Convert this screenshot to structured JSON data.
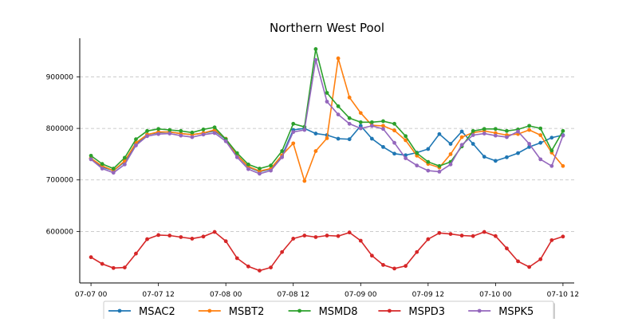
{
  "chart_data": {
    "type": "line",
    "title": "Northern West Pool",
    "xlabel": "",
    "ylabel": "",
    "x": [
      "07-07 00",
      "07-07 02",
      "07-07 04",
      "07-07 06",
      "07-07 08",
      "07-07 10",
      "07-07 12",
      "07-07 14",
      "07-07 16",
      "07-07 18",
      "07-07 20",
      "07-07 22",
      "07-08 00",
      "07-08 02",
      "07-08 04",
      "07-08 06",
      "07-08 08",
      "07-08 10",
      "07-08 12",
      "07-08 14",
      "07-08 16",
      "07-08 18",
      "07-08 20",
      "07-08 22",
      "07-09 00",
      "07-09 02",
      "07-09 04",
      "07-09 06",
      "07-09 08",
      "07-09 10",
      "07-09 12",
      "07-09 14",
      "07-09 16",
      "07-09 18",
      "07-09 20",
      "07-09 22",
      "07-10 00",
      "07-10 02",
      "07-10 04",
      "07-10 06",
      "07-10 08",
      "07-10 10",
      "07-10 12"
    ],
    "xlim": [
      "07-06 22",
      "07-10 14"
    ],
    "x_ticks": [
      "07-07 00",
      "07-07 12",
      "07-08 00",
      "07-08 12",
      "07-09 00",
      "07-09 12",
      "07-10 00",
      "07-10 12"
    ],
    "y_ticks": [
      600000,
      700000,
      800000,
      900000
    ],
    "ylim": [
      500000,
      975000
    ],
    "grid": "y-dashed",
    "legend_position": "bottom",
    "series": [
      {
        "name": "MSAC2",
        "color": "#1f77b4",
        "values": [
          742000,
          725000,
          718000,
          735000,
          770000,
          788000,
          792000,
          793000,
          790000,
          788000,
          791000,
          795000,
          779000,
          748000,
          725000,
          716000,
          721000,
          747000,
          797000,
          800000,
          790000,
          787000,
          780000,
          779000,
          805000,
          780000,
          764000,
          751000,
          748000,
          753000,
          760000,
          789000,
          770000,
          794000,
          770000,
          745000,
          737000,
          744000,
          752000,
          764000,
          772000,
          782000,
          787000
        ]
      },
      {
        "name": "MSBT2",
        "color": "#ff7f0e",
        "values": [
          742000,
          727000,
          718000,
          737000,
          772000,
          788000,
          793000,
          793000,
          790000,
          788000,
          791000,
          797000,
          780000,
          748000,
          726000,
          717000,
          722000,
          748000,
          771000,
          698000,
          756000,
          781000,
          936000,
          860000,
          830000,
          806000,
          805000,
          796000,
          777000,
          747000,
          731000,
          724000,
          750000,
          783000,
          792000,
          795000,
          791000,
          787000,
          789000,
          797000,
          787000,
          753000,
          727000
        ]
      },
      {
        "name": "MSMD8",
        "color": "#2ca02c",
        "values": [
          747000,
          731000,
          722000,
          743000,
          779000,
          795000,
          799000,
          797000,
          795000,
          792000,
          798000,
          802000,
          779000,
          752000,
          730000,
          722000,
          728000,
          756000,
          809000,
          803000,
          954000,
          869000,
          843000,
          820000,
          812000,
          812000,
          814000,
          809000,
          785000,
          752000,
          735000,
          727000,
          735000,
          765000,
          795000,
          799000,
          799000,
          795000,
          798000,
          805000,
          800000,
          757000,
          795000
        ]
      },
      {
        "name": "MSPD3",
        "color": "#d62728",
        "values": [
          550000,
          537000,
          529000,
          530000,
          557000,
          585000,
          593000,
          592000,
          589000,
          586000,
          590000,
          599000,
          581000,
          548000,
          532000,
          524000,
          530000,
          560000,
          586000,
          592000,
          589000,
          592000,
          591000,
          598000,
          582000,
          553000,
          535000,
          528000,
          533000,
          560000,
          585000,
          597000,
          595000,
          592000,
          591000,
          599000,
          591000,
          567000,
          542000,
          531000,
          546000,
          583000,
          590000
        ]
      },
      {
        "name": "MSPK5",
        "color": "#9467bd",
        "values": [
          740000,
          722000,
          714000,
          730000,
          767000,
          785000,
          789000,
          790000,
          786000,
          783000,
          788000,
          791000,
          775000,
          744000,
          721000,
          712000,
          718000,
          744000,
          793000,
          797000,
          933000,
          852000,
          827000,
          809000,
          800000,
          805000,
          799000,
          772000,
          742000,
          728000,
          718000,
          716000,
          730000,
          768000,
          787000,
          790000,
          786000,
          783000,
          794000,
          770000,
          740000,
          727000,
          786000
        ]
      }
    ]
  }
}
